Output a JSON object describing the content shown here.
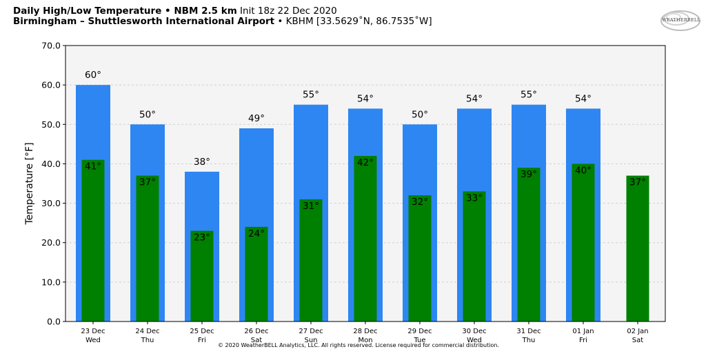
{
  "header": {
    "line1_bold": "Daily High/Low Temperature • NBM 2.5 km",
    "line1_normal": " Init 18z 22 Dec 2020",
    "line2_bold": "Birmingham – Shuttlesworth International Airport",
    "line2_normal": " • KBHM [33.5629˚N, 86.7535˚W]"
  },
  "logo": {
    "text": "WEATHERBELL"
  },
  "footer": {
    "copyright": "© 2020 WeatherBELL Analytics, LLC. All rights reserved. License required for commercial distribution."
  },
  "colors": {
    "high": "#2e86f2",
    "low": "#008000",
    "plot_bg": "#f4f4f4",
    "grid": "#d0d0d0"
  },
  "chart_data": {
    "type": "bar",
    "ylabel": "Temperature [°F]",
    "ylim": [
      0,
      70
    ],
    "yticks": [
      "0.0",
      "10.0",
      "20.0",
      "30.0",
      "40.0",
      "50.0",
      "60.0",
      "70.0"
    ],
    "grid": true,
    "categories": [
      [
        "23 Dec",
        "Wed"
      ],
      [
        "24 Dec",
        "Thu"
      ],
      [
        "25 Dec",
        "Fri"
      ],
      [
        "26 Dec",
        "Sat"
      ],
      [
        "27 Dec",
        "Sun"
      ],
      [
        "28 Dec",
        "Mon"
      ],
      [
        "29 Dec",
        "Tue"
      ],
      [
        "30 Dec",
        "Wed"
      ],
      [
        "31 Dec",
        "Thu"
      ],
      [
        "01 Jan",
        "Fri"
      ],
      [
        "02 Jan",
        "Sat"
      ]
    ],
    "series": [
      {
        "role": "high",
        "values": [
          60,
          50,
          38,
          49,
          55,
          54,
          50,
          54,
          55,
          54,
          null
        ],
        "labels": [
          "60°",
          "50°",
          "38°",
          "49°",
          "55°",
          "54°",
          "50°",
          "54°",
          "55°",
          "54°",
          ""
        ]
      },
      {
        "role": "low",
        "values": [
          41,
          37,
          23,
          24,
          31,
          42,
          32,
          33,
          39,
          40,
          37
        ],
        "labels": [
          "41°",
          "37°",
          "23°",
          "24°",
          "31°",
          "42°",
          "32°",
          "33°",
          "39°",
          "40°",
          "37°"
        ]
      }
    ]
  }
}
